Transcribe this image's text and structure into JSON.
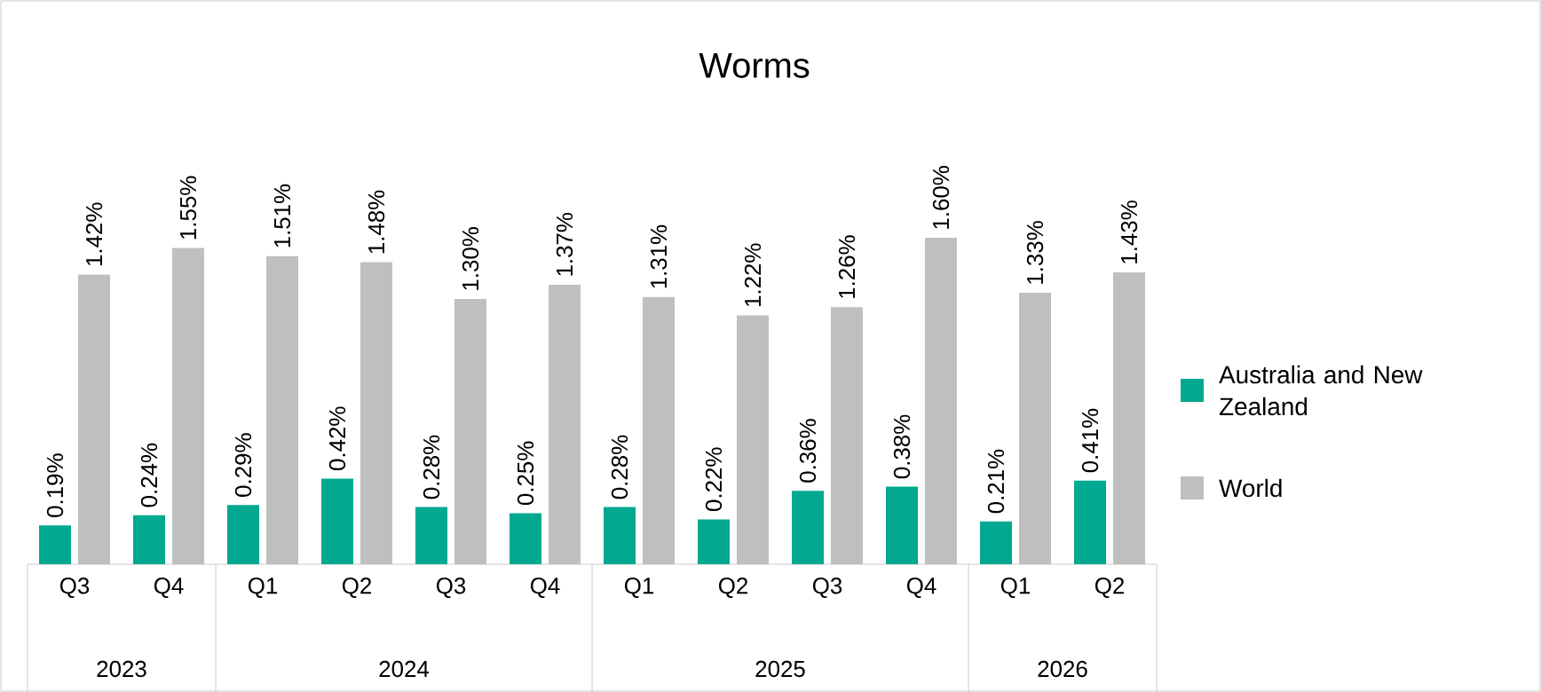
{
  "chart_data": {
    "type": "bar",
    "title": "Worms",
    "categories": [
      "Q3",
      "Q4",
      "Q1",
      "Q2",
      "Q3",
      "Q4",
      "Q1",
      "Q2",
      "Q3",
      "Q4",
      "Q1",
      "Q2"
    ],
    "series": [
      {
        "name": "Australia and New Zealand",
        "color": "#00a98f",
        "values": [
          0.19,
          0.24,
          0.29,
          0.42,
          0.28,
          0.25,
          0.28,
          0.22,
          0.36,
          0.38,
          0.21,
          0.41
        ],
        "value_labels": [
          "0.19%",
          "0.24%",
          "0.29%",
          "0.42%",
          "0.28%",
          "0.25%",
          "0.28%",
          "0.22%",
          "0.36%",
          "0.38%",
          "0.21%",
          "0.41%"
        ]
      },
      {
        "name": "World",
        "color": "#bfbfbf",
        "values": [
          1.42,
          1.55,
          1.51,
          1.48,
          1.3,
          1.37,
          1.31,
          1.22,
          1.26,
          1.6,
          1.33,
          1.43
        ],
        "value_labels": [
          "1.42%",
          "1.55%",
          "1.51%",
          "1.48%",
          "1.30%",
          "1.37%",
          "1.31%",
          "1.22%",
          "1.26%",
          "1.60%",
          "1.33%",
          "1.43%"
        ]
      }
    ],
    "annotations": [
      "2023",
      "2024",
      "2025",
      "2026"
    ],
    "tick_labels": "x",
    "legend": "right"
  }
}
